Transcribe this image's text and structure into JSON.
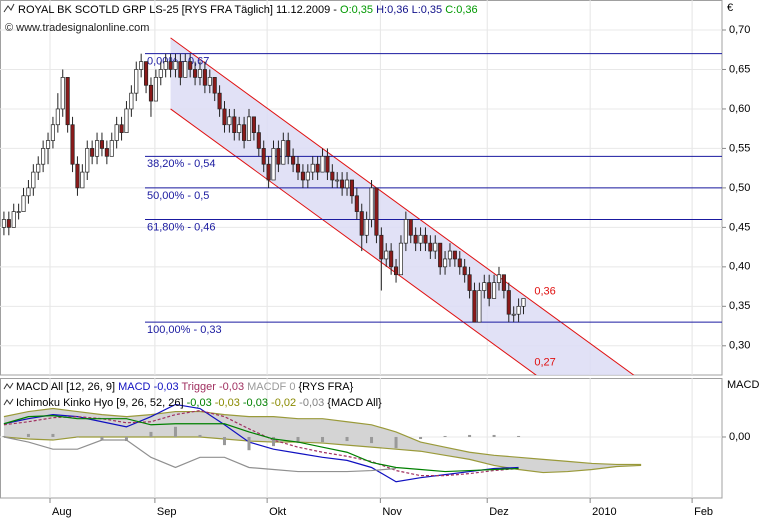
{
  "header": {
    "instrument": "ROYAL BK SCOTLD GRP LS-25 [RYS FRA  Täglich] 11.12.2009 -",
    "open": "O:0,35",
    "high_low": "H:0,36 L:0,35",
    "close": "C:0,36",
    "copyright": "© www.tradesignalonline.com"
  },
  "chart_data": [
    {
      "type": "candlestick",
      "currency": "€",
      "xlim": [
        -0.8,
        146.5
      ],
      "xticks": [
        {
          "value": 9.4,
          "label": "Aug"
        },
        {
          "value": 30.8,
          "label": "Sep"
        },
        {
          "value": 53.7,
          "label": "Okt"
        },
        {
          "value": 76.8,
          "label": "Nov"
        },
        {
          "value": 98.6,
          "label": "Dez"
        },
        {
          "value": 119.6,
          "label": "2010"
        },
        {
          "value": 140.4,
          "label": "Feb"
        }
      ],
      "ylim": [
        0.263,
        0.738
      ],
      "yticks": [
        {
          "value": 0.3,
          "label": "0,30"
        },
        {
          "value": 0.35,
          "label": "0,35"
        },
        {
          "value": 0.4,
          "label": "0,40"
        },
        {
          "value": 0.45,
          "label": "0,45"
        },
        {
          "value": 0.5,
          "label": "0,50"
        },
        {
          "value": 0.55,
          "label": "0,55"
        },
        {
          "value": 0.6,
          "label": "0,60"
        },
        {
          "value": 0.65,
          "label": "0,65"
        },
        {
          "value": 0.7,
          "label": "0,70"
        }
      ],
      "grid": true,
      "up_color": "#ffffff",
      "down_color": "#8b1a1a",
      "x": [
        0,
        1,
        2,
        3,
        4,
        5,
        6,
        7,
        8,
        9,
        10,
        11,
        12,
        13,
        14,
        15,
        16,
        17,
        18,
        19,
        20,
        21,
        22,
        23,
        24,
        25,
        26,
        27,
        28,
        29,
        30,
        31,
        32,
        33,
        34,
        35,
        36,
        37,
        38,
        39,
        40,
        41,
        42,
        43,
        44,
        45,
        46,
        47,
        48,
        49,
        50,
        51,
        52,
        53,
        54,
        55,
        56,
        57,
        58,
        59,
        60,
        61,
        62,
        63,
        64,
        65,
        66,
        67,
        68,
        69,
        70,
        71,
        72,
        73,
        74,
        75,
        76,
        77,
        78,
        79,
        80,
        81,
        82,
        83,
        84,
        85,
        86,
        87,
        88,
        89,
        90,
        91,
        92,
        93,
        94,
        95,
        96,
        97,
        98,
        99,
        100,
        101,
        102,
        103,
        104,
        105,
        106
      ],
      "candles": [
        [
          0.45,
          0.47,
          0.44,
          0.46
        ],
        [
          0.46,
          0.47,
          0.44,
          0.45
        ],
        [
          0.45,
          0.48,
          0.45,
          0.47
        ],
        [
          0.47,
          0.48,
          0.46,
          0.47
        ],
        [
          0.47,
          0.5,
          0.47,
          0.49
        ],
        [
          0.49,
          0.51,
          0.48,
          0.5
        ],
        [
          0.5,
          0.53,
          0.49,
          0.52
        ],
        [
          0.52,
          0.54,
          0.51,
          0.53
        ],
        [
          0.53,
          0.56,
          0.52,
          0.55
        ],
        [
          0.55,
          0.57,
          0.53,
          0.56
        ],
        [
          0.56,
          0.59,
          0.55,
          0.58
        ],
        [
          0.58,
          0.62,
          0.57,
          0.6
        ],
        [
          0.6,
          0.65,
          0.59,
          0.64
        ],
        [
          0.64,
          0.64,
          0.57,
          0.58
        ],
        [
          0.58,
          0.59,
          0.52,
          0.53
        ],
        [
          0.53,
          0.54,
          0.49,
          0.5
        ],
        [
          0.5,
          0.53,
          0.5,
          0.52
        ],
        [
          0.52,
          0.56,
          0.51,
          0.55
        ],
        [
          0.55,
          0.56,
          0.53,
          0.54
        ],
        [
          0.54,
          0.57,
          0.53,
          0.56
        ],
        [
          0.56,
          0.57,
          0.54,
          0.55
        ],
        [
          0.55,
          0.56,
          0.53,
          0.54
        ],
        [
          0.54,
          0.57,
          0.54,
          0.56
        ],
        [
          0.56,
          0.59,
          0.55,
          0.58
        ],
        [
          0.58,
          0.59,
          0.56,
          0.57
        ],
        [
          0.57,
          0.61,
          0.57,
          0.6
        ],
        [
          0.6,
          0.63,
          0.59,
          0.62
        ],
        [
          0.62,
          0.66,
          0.61,
          0.65
        ],
        [
          0.65,
          0.67,
          0.64,
          0.66
        ],
        [
          0.66,
          0.66,
          0.62,
          0.63
        ],
        [
          0.63,
          0.64,
          0.59,
          0.61
        ],
        [
          0.61,
          0.65,
          0.61,
          0.64
        ],
        [
          0.64,
          0.66,
          0.63,
          0.65
        ],
        [
          0.65,
          0.67,
          0.64,
          0.66
        ],
        [
          0.66,
          0.67,
          0.64,
          0.65
        ],
        [
          0.65,
          0.67,
          0.64,
          0.66
        ],
        [
          0.66,
          0.67,
          0.63,
          0.64
        ],
        [
          0.64,
          0.67,
          0.64,
          0.66
        ],
        [
          0.66,
          0.67,
          0.64,
          0.65
        ],
        [
          0.65,
          0.66,
          0.63,
          0.64
        ],
        [
          0.64,
          0.66,
          0.63,
          0.65
        ],
        [
          0.65,
          0.66,
          0.62,
          0.63
        ],
        [
          0.63,
          0.65,
          0.62,
          0.64
        ],
        [
          0.64,
          0.64,
          0.61,
          0.62
        ],
        [
          0.62,
          0.63,
          0.59,
          0.6
        ],
        [
          0.6,
          0.61,
          0.57,
          0.58
        ],
        [
          0.58,
          0.6,
          0.57,
          0.59
        ],
        [
          0.59,
          0.6,
          0.56,
          0.57
        ],
        [
          0.57,
          0.59,
          0.56,
          0.58
        ],
        [
          0.58,
          0.59,
          0.55,
          0.56
        ],
        [
          0.56,
          0.6,
          0.56,
          0.59
        ],
        [
          0.59,
          0.59,
          0.56,
          0.57
        ],
        [
          0.57,
          0.58,
          0.54,
          0.55
        ],
        [
          0.55,
          0.56,
          0.52,
          0.53
        ],
        [
          0.53,
          0.54,
          0.5,
          0.51
        ],
        [
          0.51,
          0.56,
          0.51,
          0.55
        ],
        [
          0.55,
          0.56,
          0.52,
          0.53
        ],
        [
          0.53,
          0.57,
          0.53,
          0.56
        ],
        [
          0.56,
          0.57,
          0.53,
          0.54
        ],
        [
          0.54,
          0.55,
          0.52,
          0.53
        ],
        [
          0.53,
          0.54,
          0.51,
          0.52
        ],
        [
          0.52,
          0.53,
          0.5,
          0.51
        ],
        [
          0.51,
          0.53,
          0.5,
          0.52
        ],
        [
          0.52,
          0.54,
          0.51,
          0.53
        ],
        [
          0.53,
          0.54,
          0.51,
          0.52
        ],
        [
          0.52,
          0.55,
          0.52,
          0.54
        ],
        [
          0.54,
          0.55,
          0.51,
          0.52
        ],
        [
          0.52,
          0.53,
          0.5,
          0.51
        ],
        [
          0.51,
          0.52,
          0.5,
          0.51
        ],
        [
          0.51,
          0.52,
          0.49,
          0.5
        ],
        [
          0.5,
          0.52,
          0.49,
          0.51
        ],
        [
          0.51,
          0.51,
          0.48,
          0.49
        ],
        [
          0.49,
          0.5,
          0.46,
          0.47
        ],
        [
          0.47,
          0.48,
          0.42,
          0.44
        ],
        [
          0.44,
          0.47,
          0.43,
          0.46
        ],
        [
          0.46,
          0.51,
          0.45,
          0.5
        ],
        [
          0.5,
          0.5,
          0.43,
          0.44
        ],
        [
          0.44,
          0.45,
          0.37,
          0.41
        ],
        [
          0.41,
          0.43,
          0.4,
          0.42
        ],
        [
          0.42,
          0.43,
          0.39,
          0.4
        ],
        [
          0.4,
          0.41,
          0.38,
          0.39
        ],
        [
          0.39,
          0.44,
          0.39,
          0.43
        ],
        [
          0.43,
          0.47,
          0.42,
          0.46
        ],
        [
          0.46,
          0.46,
          0.43,
          0.44
        ],
        [
          0.44,
          0.45,
          0.42,
          0.43
        ],
        [
          0.43,
          0.45,
          0.42,
          0.44
        ],
        [
          0.44,
          0.45,
          0.42,
          0.43
        ],
        [
          0.43,
          0.44,
          0.41,
          0.42
        ],
        [
          0.42,
          0.44,
          0.41,
          0.43
        ],
        [
          0.43,
          0.43,
          0.39,
          0.4
        ],
        [
          0.4,
          0.42,
          0.39,
          0.41
        ],
        [
          0.41,
          0.43,
          0.4,
          0.42
        ],
        [
          0.42,
          0.42,
          0.4,
          0.41
        ],
        [
          0.41,
          0.42,
          0.39,
          0.4
        ],
        [
          0.4,
          0.41,
          0.38,
          0.39
        ],
        [
          0.39,
          0.4,
          0.36,
          0.37
        ],
        [
          0.37,
          0.38,
          0.33,
          0.33
        ],
        [
          0.33,
          0.38,
          0.33,
          0.37
        ],
        [
          0.37,
          0.39,
          0.36,
          0.38
        ],
        [
          0.38,
          0.39,
          0.35,
          0.36
        ],
        [
          0.36,
          0.39,
          0.36,
          0.38
        ],
        [
          0.38,
          0.4,
          0.37,
          0.39
        ],
        [
          0.39,
          0.39,
          0.36,
          0.37
        ],
        [
          0.37,
          0.38,
          0.33,
          0.34
        ],
        [
          0.34,
          0.35,
          0.33,
          0.34
        ],
        [
          0.34,
          0.36,
          0.33,
          0.35
        ],
        [
          0.35,
          0.36,
          0.34,
          0.36
        ]
      ],
      "levels": [
        {
          "label": "0,00% - 0,67",
          "value": 0.67
        },
        {
          "label": "38,20% - 0,54",
          "value": 0.54
        },
        {
          "label": "50,00% - 0,5",
          "value": 0.5
        },
        {
          "label": "61,80% - 0,46",
          "value": 0.46
        },
        {
          "label": "100,00% - 0,33",
          "value": 0.33
        }
      ],
      "level_color": "#1a1aa0",
      "channel": {
        "x": [
          34,
          107
        ],
        "upper": [
          0.69,
          0.36
        ],
        "lower": [
          0.6,
          0.27
        ],
        "upper_label": "0,36",
        "lower_label": "0,27",
        "color": "#e01010",
        "fill": "#dcdcf5"
      }
    },
    {
      "type": "indicator",
      "axis_title": "MACD",
      "ylim": [
        -0.06,
        0.058
      ],
      "yticks": [
        {
          "value": 0,
          "label": "0,00"
        }
      ],
      "title": "MACD All [12, 26, 9]",
      "source": "{RYS FRA}",
      "ichimoku_title": "Ichimoku Kinko Hyo [9, 26, 52, 26]",
      "ichimoku_source": "{MACD All}",
      "ichimoku_labels": [
        {
          "text": "-0,03",
          "color": "#008000"
        },
        {
          "text": "-0,03",
          "color": "#8a8a00"
        },
        {
          "text": "-0,03",
          "color": "#008000"
        },
        {
          "text": "-0,02",
          "color": "#8a8a00"
        },
        {
          "text": "-0,03",
          "color": "#808080"
        }
      ],
      "x": [
        0,
        5,
        10,
        15,
        20,
        25,
        30,
        35,
        40,
        45,
        50,
        55,
        60,
        65,
        70,
        75,
        80,
        85,
        90,
        95,
        100,
        105,
        110,
        115,
        120,
        125,
        130
      ],
      "cloud": {
        "color": "#d4d4d4",
        "edge": "#9a9a3a",
        "span_a": [
          0.02,
          0.025,
          0.028,
          0.025,
          0.022,
          0.02,
          0.022,
          0.025,
          0.025,
          0.022,
          0.02,
          0.02,
          0.018,
          0.018,
          0.015,
          0.012,
          0.005,
          -0.005,
          -0.01,
          -0.015,
          -0.018,
          -0.02,
          -0.022,
          -0.024,
          -0.026,
          -0.027,
          -0.027
        ],
        "span_b": [
          0,
          -0.002,
          -0.003,
          0,
          0,
          0,
          0,
          0,
          0,
          -0.002,
          -0.004,
          -0.005,
          -0.005,
          -0.006,
          -0.008,
          -0.01,
          -0.012,
          -0.014,
          -0.018,
          -0.022,
          -0.028,
          -0.032,
          -0.035,
          -0.034,
          -0.032,
          -0.029,
          -0.028
        ]
      },
      "series": [
        {
          "name": "MACD",
          "label": "-0,03",
          "color": "#1010c0",
          "kind": "line",
          "values": [
            0.013,
            0.018,
            0.022,
            0.02,
            0.015,
            0.01,
            0.02,
            0.032,
            0.028,
            0.012,
            -0.005,
            -0.012,
            -0.016,
            -0.02,
            -0.023,
            -0.03,
            -0.044,
            -0.04,
            -0.037,
            -0.034,
            -0.031,
            -0.03,
            null,
            null,
            null,
            null,
            null
          ]
        },
        {
          "name": "Trigger",
          "label": "-0,03",
          "color": "#a03060",
          "kind": "line",
          "values": [
            0.012,
            0.015,
            0.019,
            0.02,
            0.018,
            0.014,
            0.015,
            0.022,
            0.026,
            0.02,
            0.008,
            -0.003,
            -0.01,
            -0.015,
            -0.019,
            -0.024,
            -0.033,
            -0.038,
            -0.038,
            -0.036,
            -0.033,
            -0.031,
            null,
            null,
            null,
            null,
            null
          ]
        },
        {
          "name": "MACDF",
          "label": "0",
          "color": "#999999",
          "kind": "bar",
          "values": [
            0.001,
            0.003,
            0.003,
            0,
            -0.003,
            -0.004,
            0.005,
            0.01,
            0.002,
            -0.008,
            -0.013,
            -0.009,
            -0.006,
            -0.005,
            -0.004,
            -0.006,
            -0.011,
            -0.002,
            0.001,
            0.002,
            0.002,
            0.001,
            null,
            null,
            null,
            null,
            null
          ]
        },
        {
          "color": "#008000",
          "kind": "line",
          "values": [
            0.013,
            0.02,
            0.021,
            0.018,
            0.018,
            0.018,
            0.012,
            0.013,
            0.013,
            0.013,
            0.005,
            -0.002,
            -0.005,
            -0.01,
            -0.015,
            -0.025,
            -0.03,
            -0.032,
            -0.034,
            -0.033,
            -0.032,
            -0.031,
            null,
            null,
            null,
            null,
            null
          ]
        },
        {
          "color": "#909090",
          "kind": "line",
          "values": [
            0,
            -0.005,
            -0.012,
            -0.012,
            -0.003,
            -0.003,
            -0.02,
            -0.03,
            -0.02,
            -0.02,
            -0.03,
            -0.032,
            -0.034,
            -0.034,
            -0.034,
            -0.033,
            -0.031,
            null,
            null,
            null,
            null,
            null,
            null,
            null,
            null,
            null,
            null
          ]
        }
      ]
    }
  ]
}
